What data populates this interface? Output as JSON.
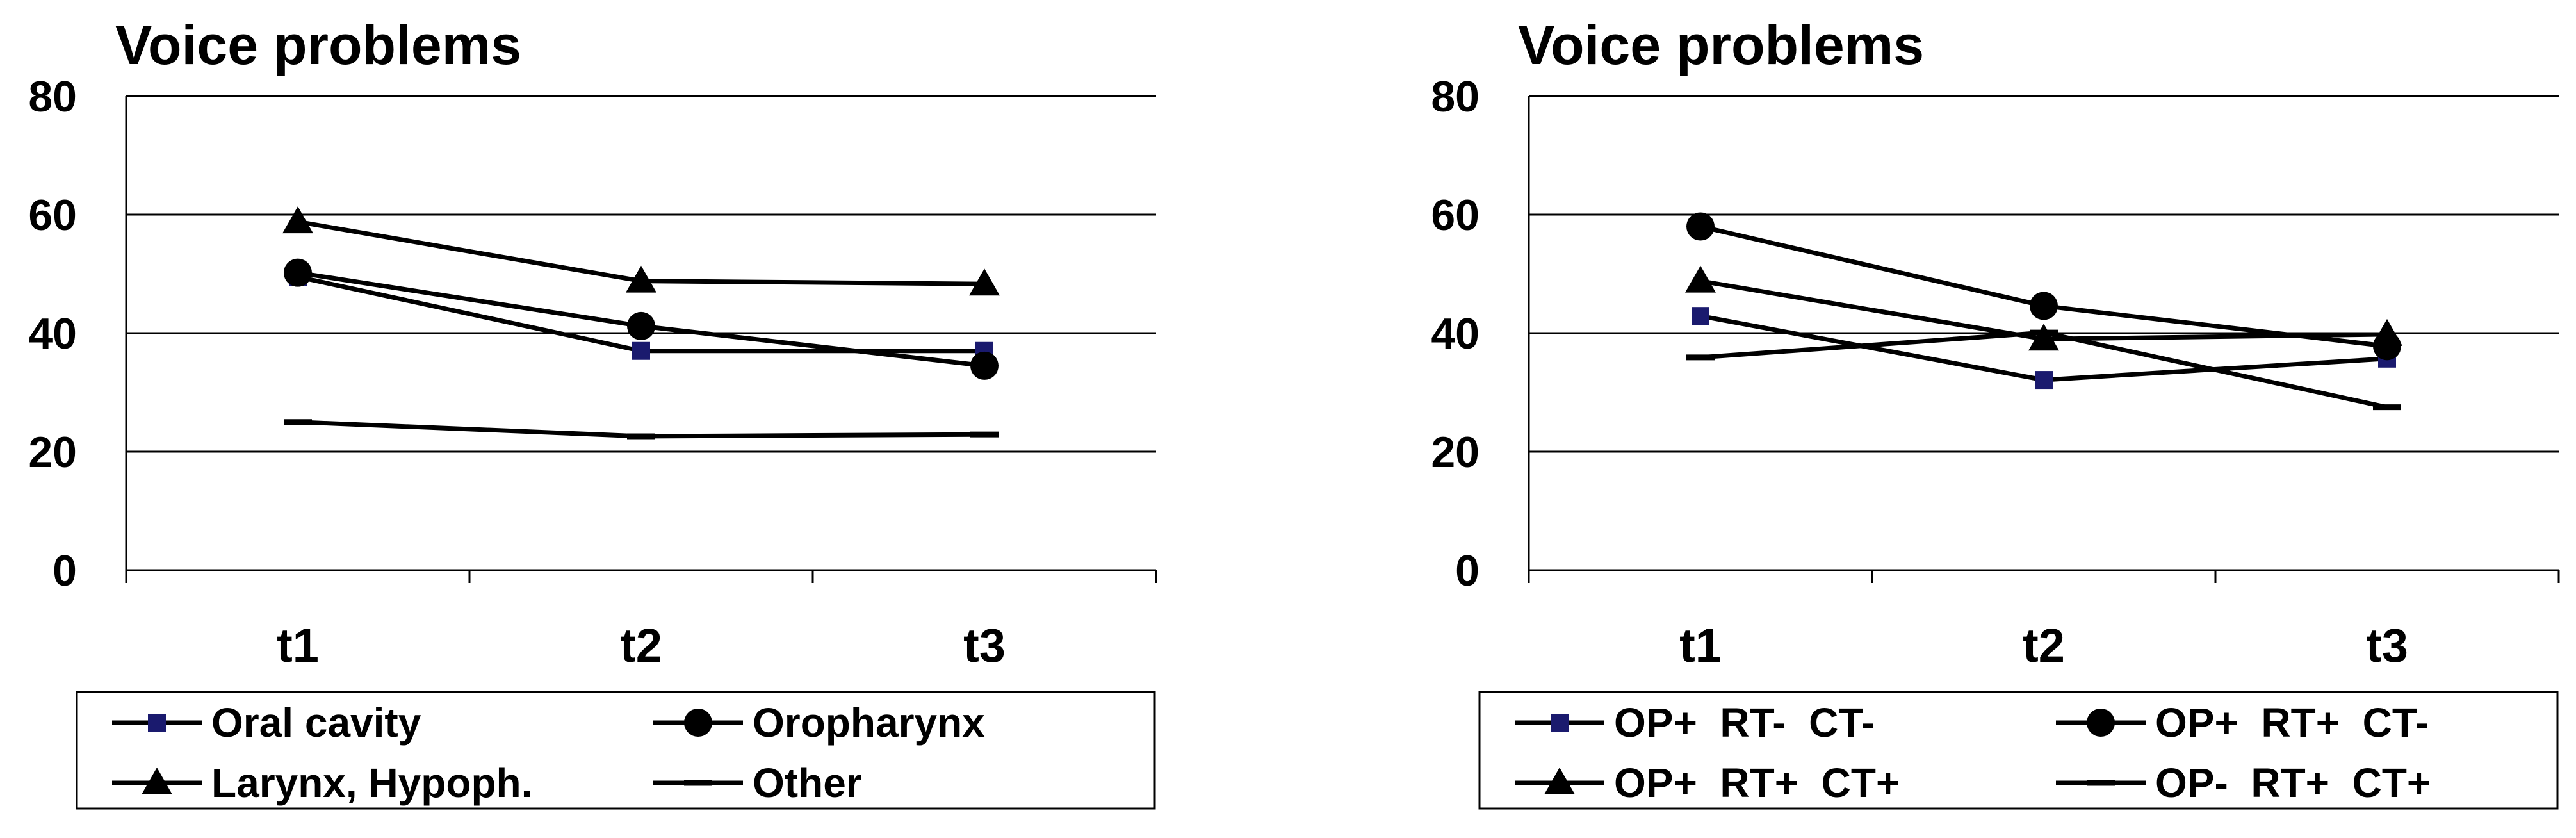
{
  "chart_data": [
    {
      "type": "line",
      "title": "Voice problems",
      "categories": [
        "t1",
        "t2",
        "t3"
      ],
      "yticks": [
        "0",
        "20",
        "40",
        "60",
        "80"
      ],
      "ylim": [
        0,
        80
      ],
      "grid": "horizontal",
      "legend_position": "bottom",
      "series": [
        {
          "name": "Oral cavity",
          "marker": "square",
          "color": "#000000",
          "marker_color": "#1a1a6e",
          "values": [
            49.5,
            37,
            37
          ]
        },
        {
          "name": "Oropharynx",
          "marker": "circle",
          "color": "#000000",
          "marker_color": "#000000",
          "values": [
            50.2,
            41.2,
            34.5
          ]
        },
        {
          "name": "Larynx, Hypoph.",
          "marker": "triangle",
          "color": "#000000",
          "marker_color": "#000000",
          "values": [
            58.8,
            48.8,
            48.3
          ]
        },
        {
          "name": "Other",
          "marker": "dash",
          "color": "#000000",
          "marker_color": "#000000",
          "values": [
            25,
            22.6,
            22.9
          ]
        }
      ]
    },
    {
      "type": "line",
      "title": "Voice problems",
      "categories": [
        "t1",
        "t2",
        "t3"
      ],
      "yticks": [
        "0",
        "20",
        "40",
        "60",
        "80"
      ],
      "ylim": [
        0,
        80
      ],
      "grid": "horizontal",
      "legend_position": "bottom",
      "series": [
        {
          "name": "OP+  RT-  CT-",
          "marker": "square",
          "color": "#000000",
          "marker_color": "#1a1a6e",
          "values": [
            42.9,
            32.1,
            35.7
          ]
        },
        {
          "name": "OP+  RT+  CT-",
          "marker": "circle",
          "color": "#000000",
          "marker_color": "#000000",
          "values": [
            58,
            44.6,
            37.8
          ]
        },
        {
          "name": "OP+  RT+  CT+",
          "marker": "triangle",
          "color": "#000000",
          "marker_color": "#000000",
          "values": [
            48.8,
            39,
            39.8
          ]
        },
        {
          "name": "OP-  RT+  CT+",
          "marker": "dash",
          "color": "#000000",
          "marker_color": "#000000",
          "values": [
            35.9,
            40.1,
            27.5
          ]
        }
      ]
    }
  ]
}
